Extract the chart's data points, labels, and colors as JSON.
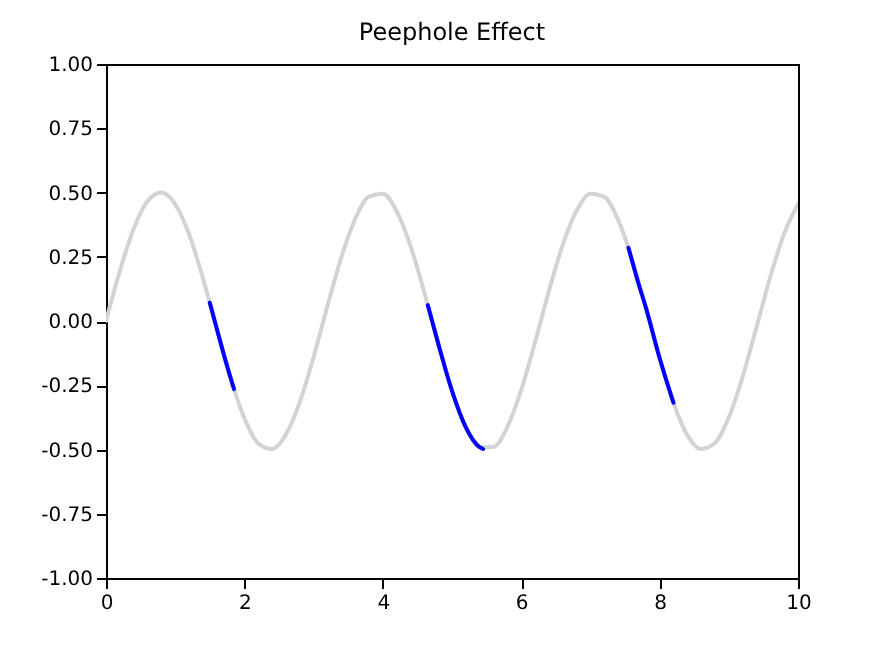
{
  "chart_data": {
    "type": "line",
    "title": "Peephole Effect",
    "xlim": [
      0,
      10
    ],
    "ylim": [
      -1,
      1
    ],
    "xticks": [
      0,
      2,
      4,
      6,
      8,
      10
    ],
    "yticks": [
      {
        "value": -1,
        "label": "-1.00"
      },
      {
        "value": -0.75,
        "label": "-0.75"
      },
      {
        "value": -0.5,
        "label": "-0.50"
      },
      {
        "value": -0.25,
        "label": "-0.25"
      },
      {
        "value": 0,
        "label": "0.00"
      },
      {
        "value": 0.25,
        "label": "0.25"
      },
      {
        "value": 0.5,
        "label": "0.50"
      },
      {
        "value": 0.75,
        "label": "0.75"
      },
      {
        "value": 1,
        "label": "1.00"
      }
    ],
    "grid": false,
    "line_style": "solid",
    "series": [
      {
        "color": "#d3d3d3",
        "x": [
          0,
          0.2,
          0.4,
          0.6,
          0.8,
          1.0,
          1.2,
          1.4,
          1.6,
          1.8,
          2.0,
          2.2,
          2.4,
          2.6,
          2.8,
          3.0,
          3.2,
          3.4,
          3.6,
          3.8,
          4.0,
          4.2,
          4.4,
          4.6,
          4.8,
          5.0,
          5.2,
          5.4,
          5.6,
          5.8,
          6.0,
          6.2,
          6.4,
          6.6,
          6.8,
          7.0,
          7.2,
          7.4,
          7.6,
          7.8,
          8.0,
          8.2,
          8.4,
          8.6,
          8.8,
          9.0,
          9.2,
          9.4,
          9.6,
          9.8,
          10
        ],
        "values": [
          0,
          0.195,
          0.359,
          0.466,
          0.5,
          0.455,
          0.338,
          0.167,
          -0.029,
          -0.221,
          -0.378,
          -0.476,
          -0.498,
          -0.442,
          -0.316,
          -0.14,
          0.058,
          0.247,
          0.397,
          0.484,
          0.495,
          0.427,
          0.292,
          0.111,
          -0.087,
          -0.272,
          -0.414,
          -0.491,
          -0.49,
          -0.412,
          -0.268,
          -0.083,
          0.116,
          0.296,
          0.429,
          0.495,
          0.483,
          0.394,
          0.243,
          0.054,
          -0.144,
          -0.318,
          -0.444,
          -0.498,
          -0.475,
          -0.375,
          -0.217,
          -0.024,
          0.172,
          0.34,
          0.456
        ]
      },
      {
        "color": "#0000ff",
        "x": [
          1.5,
          1.6,
          1.7,
          1.8,
          1.85
        ],
        "values": [
          0.071,
          -0.029,
          -0.128,
          -0.221,
          -0.265
        ]
      },
      {
        "color": "#0000ff",
        "x": [
          4.65,
          4.8,
          5.0,
          5.2,
          5.4,
          5.45
        ],
        "values": [
          0.062,
          -0.087,
          -0.272,
          -0.414,
          -0.491,
          -0.498
        ]
      },
      {
        "color": "#0000ff",
        "x": [
          7.55,
          7.7,
          7.8,
          8.0,
          8.2
        ],
        "values": [
          0.285,
          0.141,
          0.054,
          -0.144,
          -0.318
        ]
      }
    ]
  }
}
